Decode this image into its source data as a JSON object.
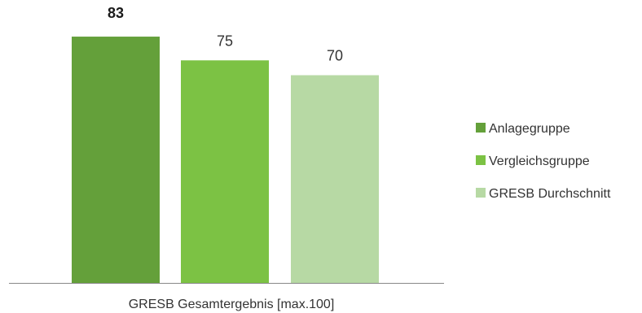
{
  "chart_data": {
    "type": "bar",
    "categories": [
      "Anlagegruppe",
      "Vergleichsgruppe",
      "GRESB Durchschnitt"
    ],
    "values": [
      83,
      75,
      70
    ],
    "data_labels": [
      "83",
      "75",
      "70"
    ],
    "emphasized_index": 0,
    "xlabel": "GRESB Gesamtergebnis [max.100]",
    "ylim": [
      0,
      100
    ],
    "grid": false,
    "legend_position": "right",
    "legend": [
      "Anlagegruppe",
      "Vergleichsgruppe",
      "GRESB Durchschnitt"
    ],
    "colors": [
      "#64a03a",
      "#7cc244",
      "#b7d9a4"
    ],
    "axis_color": "#888888"
  }
}
